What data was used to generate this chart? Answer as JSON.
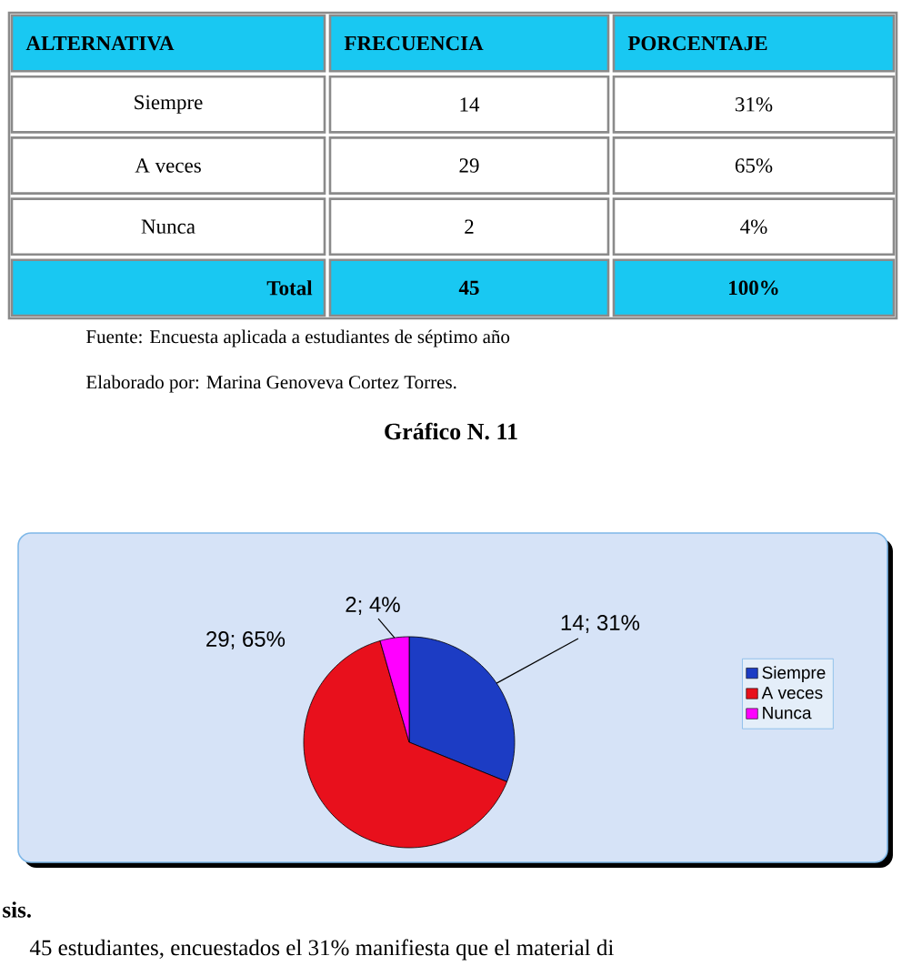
{
  "chart_data": {
    "type": "pie",
    "title": "Gráfico N. 11",
    "categories": [
      "Siempre",
      "A veces",
      "Nunca"
    ],
    "values": [
      14,
      29,
      2
    ],
    "colors": [
      "#1c3cc4",
      "#e8101c",
      "#ff00ff"
    ],
    "value_labels": [
      "14; 31%",
      "29; 65%",
      "2; 4%"
    ],
    "legend": "right",
    "annotations": [
      "ALTERNATIVA",
      "FRECUENCIA",
      "PORCENTAJE",
      "14",
      "31%",
      "29",
      "65%",
      "2",
      "4%",
      "Total",
      "45",
      "100%",
      "Fuente: Encuesta aplicada a estudiantes de séptimo año",
      "Elaborado por: Marina Genoveva Cortez Torres.",
      "sis.",
      "45 estudiantes, encuestados el 31% manifiesta que el material di"
    ]
  }
}
